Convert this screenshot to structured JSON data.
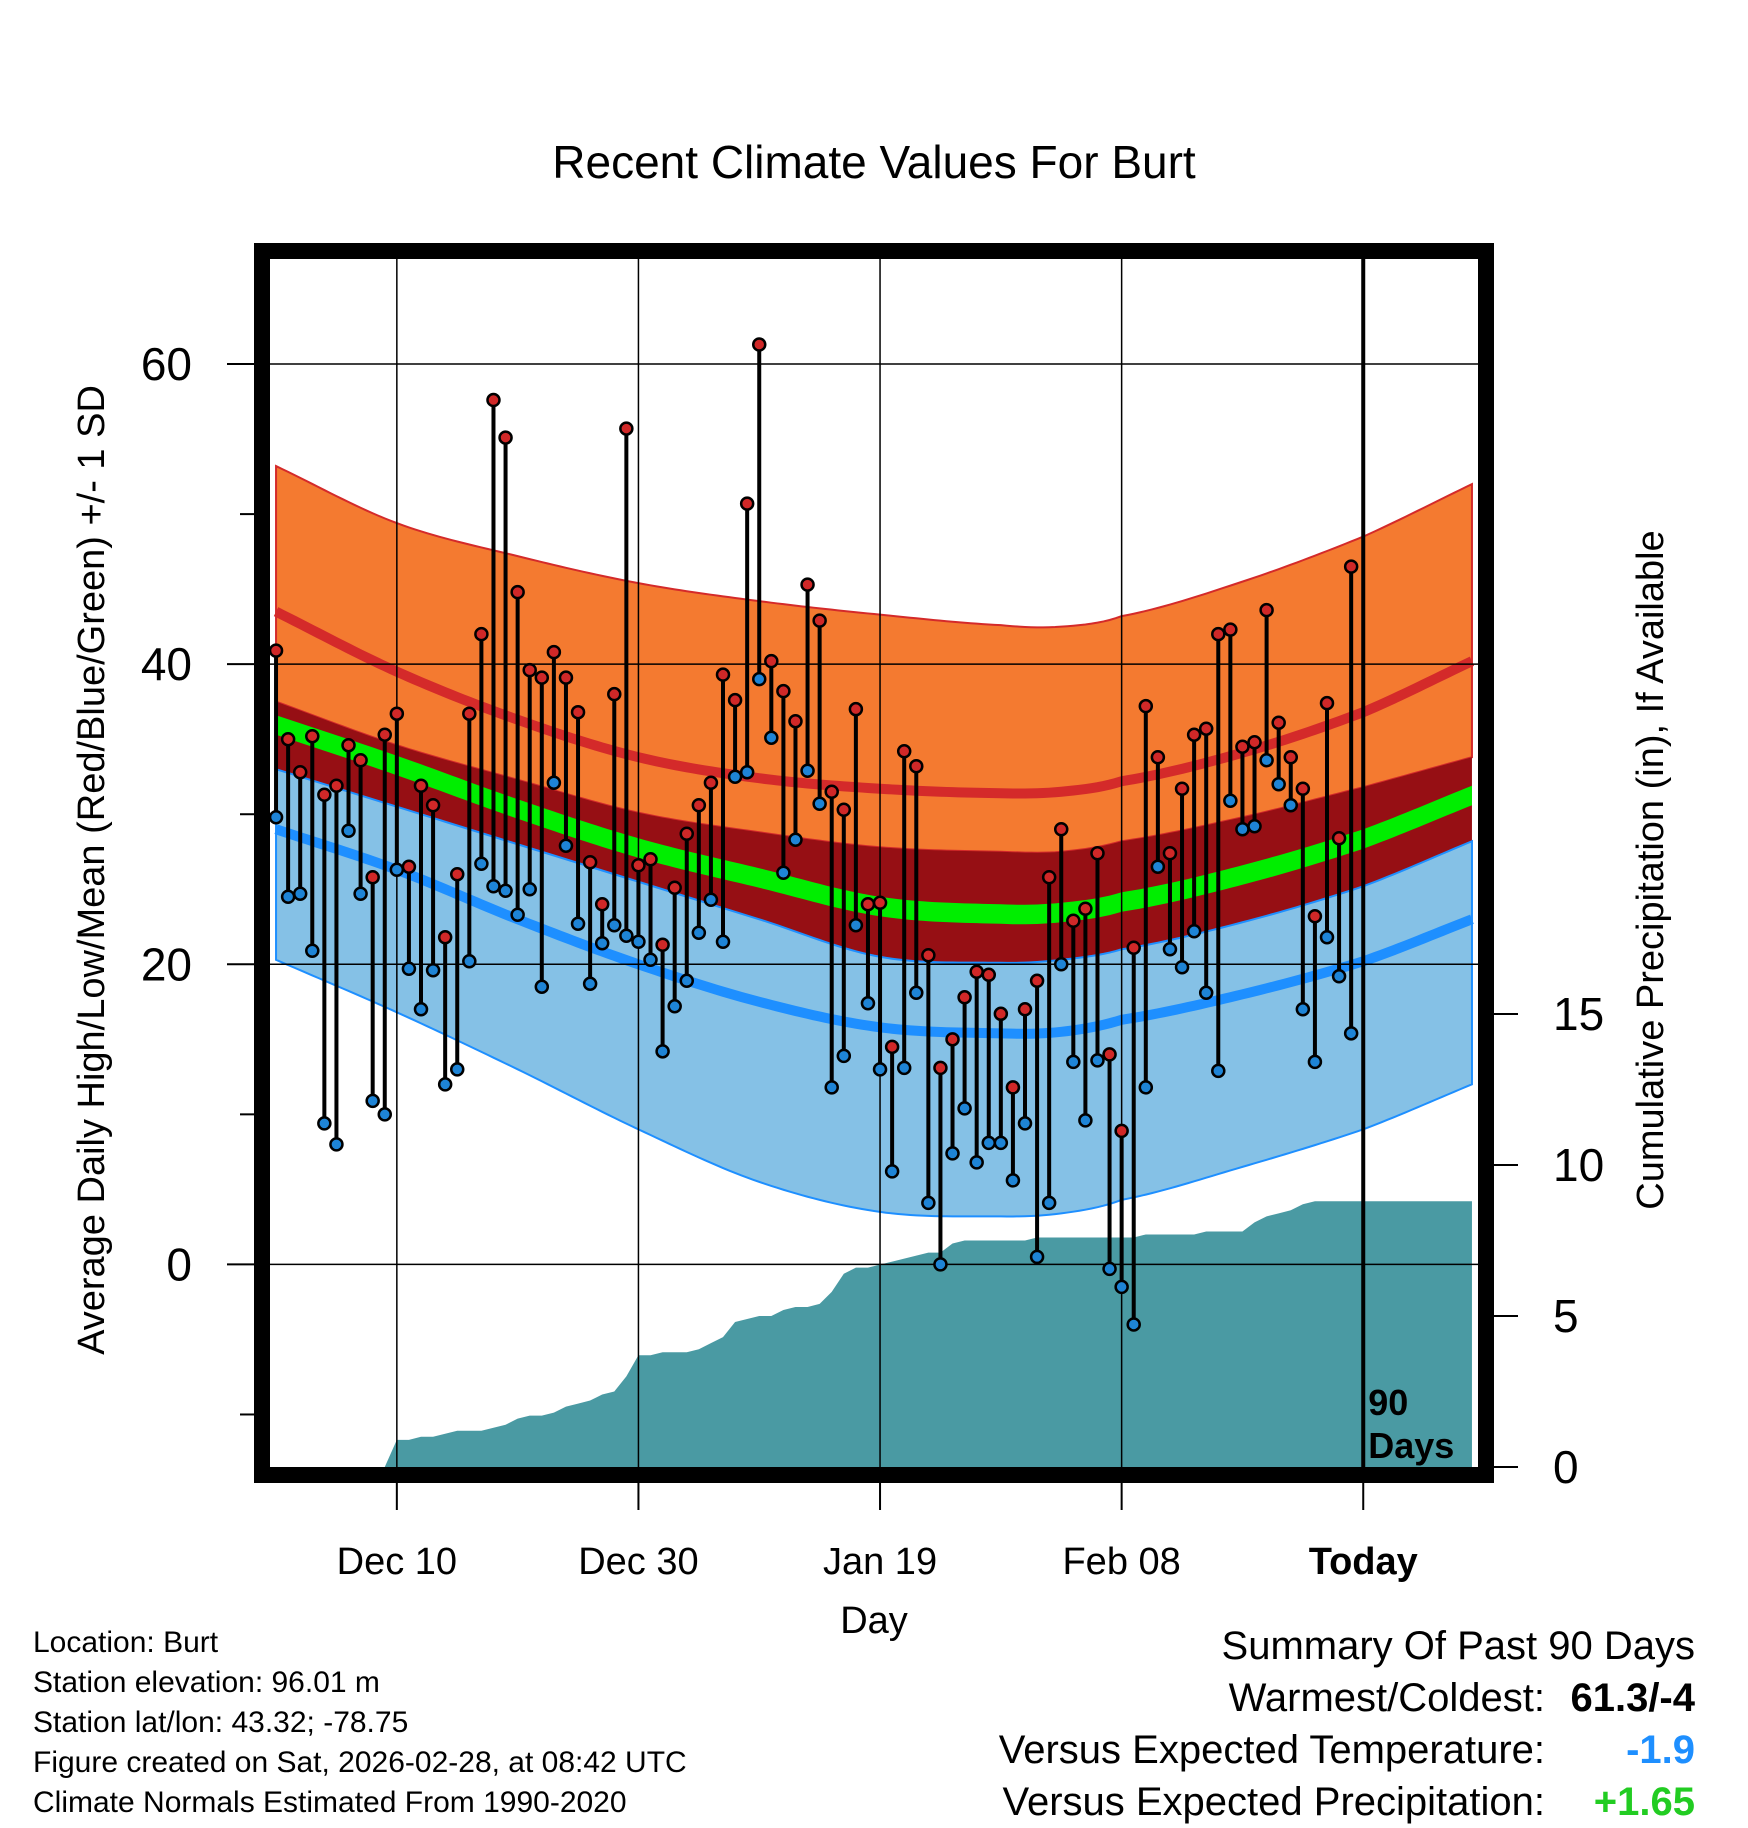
{
  "chart_data": {
    "type": "line",
    "title": "Recent Climate Values For Burt",
    "xlabel": "Day",
    "ylabel": "Average Daily High/Low/Mean (Red/Blue/Green) +/- 1 SD",
    "y2label": "Cumulative Precipitation (in), If Available",
    "x_ticks": [
      {
        "day": 10,
        "label": "Dec 10"
      },
      {
        "day": 30,
        "label": "Dec 30"
      },
      {
        "day": 50,
        "label": "Jan 19"
      },
      {
        "day": 70,
        "label": "Feb 08"
      },
      {
        "day": 90,
        "label": "Today"
      }
    ],
    "xlim": [
      -0.5,
      99.5
    ],
    "ylim": [
      -13.5,
      67
    ],
    "y_ticks": [
      0,
      20,
      40,
      60
    ],
    "y2_ticks": [
      0,
      5,
      10,
      15
    ],
    "y2lim": [
      0,
      40
    ],
    "today_day": 90,
    "today_label_line1": "90",
    "today_label_line2": "Days",
    "normals_days": [
      0,
      10,
      20,
      30,
      40,
      50,
      60,
      65,
      70,
      80,
      90,
      99
    ],
    "normals": {
      "high_upper": [
        53.2,
        49.4,
        47.2,
        45.4,
        44.2,
        43.3,
        42.6,
        42.5,
        43.2,
        45.5,
        48.5,
        52.0
      ],
      "high_mean": [
        43.5,
        39.5,
        36.3,
        33.8,
        32.4,
        31.7,
        31.4,
        31.5,
        32.2,
        34.1,
        36.8,
        40.2
      ],
      "high_lower": [
        37.5,
        34.6,
        32.3,
        30.1,
        28.8,
        27.8,
        27.5,
        27.5,
        28.2,
        29.8,
        31.8,
        33.8
      ],
      "mean_upper": [
        36.6,
        33.9,
        31.0,
        28.4,
        26.4,
        24.5,
        24.0,
        24.1,
        24.8,
        26.6,
        29.0,
        31.9
      ],
      "mean_lower": [
        35.3,
        32.6,
        29.7,
        27.1,
        25.1,
        23.2,
        22.7,
        22.8,
        23.5,
        25.3,
        27.7,
        30.6
      ],
      "low_upper": [
        33.0,
        30.5,
        28.0,
        25.5,
        23.0,
        20.5,
        20.1,
        20.3,
        21.0,
        22.8,
        25.2,
        28.2
      ],
      "low_mean": [
        29.0,
        26.3,
        23.0,
        20.0,
        17.5,
        15.8,
        15.4,
        15.5,
        16.3,
        18.0,
        20.2,
        23.0
      ],
      "low_lower": [
        20.3,
        16.8,
        13.0,
        9.0,
        5.5,
        3.5,
        3.2,
        3.4,
        4.3,
        6.5,
        9.0,
        12.0
      ]
    },
    "daily_high": [
      40.9,
      35.0,
      32.8,
      35.2,
      31.3,
      31.9,
      34.6,
      33.6,
      25.8,
      35.3,
      36.7,
      26.5,
      31.9,
      30.6,
      21.8,
      26.0,
      36.7,
      42.0,
      57.6,
      55.1,
      44.8,
      39.6,
      39.1,
      40.8,
      39.1,
      36.8,
      26.8,
      24.0,
      38.0,
      55.7,
      26.6,
      27.0,
      21.3,
      25.1,
      28.7,
      30.6,
      32.1,
      39.3,
      37.6,
      50.7,
      61.3,
      40.2,
      38.2,
      36.2,
      45.3,
      42.9,
      31.5,
      30.3,
      37.0,
      24.0,
      24.1,
      14.5,
      34.2,
      33.2,
      20.6,
      13.1,
      15.0,
      17.8,
      19.5,
      19.3,
      16.7,
      11.8,
      17.0,
      18.9,
      25.8,
      29.0,
      22.9,
      23.7,
      27.4,
      14.0,
      8.9,
      21.1,
      37.2,
      33.8,
      27.4,
      31.7,
      35.3,
      35.7,
      42.0,
      42.3,
      34.5,
      34.8,
      43.6,
      36.1,
      33.8,
      31.7,
      23.2,
      37.4,
      28.4,
      46.5
    ],
    "daily_low": [
      29.8,
      24.5,
      24.7,
      20.9,
      9.4,
      8.0,
      28.9,
      24.7,
      10.9,
      10.0,
      26.3,
      19.7,
      17.0,
      19.6,
      12.0,
      13.0,
      20.2,
      26.7,
      25.2,
      24.9,
      23.3,
      25.0,
      18.5,
      32.1,
      27.9,
      22.7,
      18.7,
      21.4,
      22.6,
      21.9,
      21.5,
      20.3,
      14.2,
      17.2,
      18.9,
      22.1,
      24.3,
      21.5,
      32.5,
      32.8,
      39.0,
      35.1,
      26.1,
      28.3,
      32.9,
      30.7,
      11.8,
      13.9,
      22.6,
      17.4,
      13.0,
      6.2,
      13.1,
      18.1,
      4.1,
      0.0,
      7.4,
      10.4,
      6.8,
      8.1,
      8.1,
      5.6,
      9.4,
      0.5,
      4.1,
      20.0,
      13.5,
      9.6,
      13.6,
      -0.3,
      -1.5,
      -4.0,
      11.8,
      26.5,
      21.0,
      19.8,
      22.2,
      18.1,
      12.9,
      30.9,
      29.0,
      29.2,
      33.6,
      32.0,
      30.6,
      17.0,
      13.5,
      21.8,
      19.2,
      15.4
    ],
    "cumulative_precip": [
      0,
      0,
      0,
      0,
      0,
      0,
      0,
      0,
      0,
      0,
      0.9,
      0.9,
      1.0,
      1.0,
      1.1,
      1.2,
      1.2,
      1.2,
      1.3,
      1.4,
      1.6,
      1.7,
      1.7,
      1.8,
      2.0,
      2.1,
      2.2,
      2.4,
      2.5,
      3.0,
      3.7,
      3.7,
      3.8,
      3.8,
      3.8,
      3.9,
      4.1,
      4.3,
      4.8,
      4.9,
      5.0,
      5.0,
      5.2,
      5.3,
      5.3,
      5.4,
      5.8,
      6.4,
      6.6,
      6.6,
      6.7,
      6.8,
      6.9,
      7.0,
      7.1,
      7.1,
      7.4,
      7.5,
      7.5,
      7.5,
      7.5,
      7.5,
      7.5,
      7.6,
      7.6,
      7.6,
      7.6,
      7.6,
      7.6,
      7.6,
      7.6,
      7.6,
      7.7,
      7.7,
      7.7,
      7.7,
      7.7,
      7.8,
      7.8,
      7.8,
      7.8,
      8.1,
      8.3,
      8.4,
      8.5,
      8.7,
      8.8,
      8.8,
      8.8,
      8.8,
      8.8,
      8.8,
      8.8,
      8.8,
      8.8,
      8.8,
      8.8,
      8.8,
      8.8,
      8.8
    ],
    "colors": {
      "high_band": "#F47A30",
      "high_mean": "#D42A2A",
      "mean_band": "#960F14",
      "normal_mean": "#00EE00",
      "low_band": "#85C1E6",
      "low_mean": "#1E8FFF",
      "precip": "#4A9AA3",
      "high_marker": "#D02828",
      "low_marker": "#1E84D6"
    }
  },
  "location": {
    "name_line": "Location: Burt",
    "elevation_line": "Station elevation: 96.01 m",
    "latlon_line": "Station lat/lon: 43.32; -78.75",
    "created_line": "Figure created on Sat, 2026-02-28, at 08:42 UTC",
    "normals_line": "Climate Normals Estimated From 1990-2020"
  },
  "summary": {
    "title": "Summary Of Past 90 Days",
    "warmest_coldest_label": "Warmest/Coldest:",
    "warmest_coldest_value": "61.3/-4",
    "temp_label": "Versus Expected Temperature:",
    "temp_value": "-1.9",
    "temp_color": "#1E8FFF",
    "precip_label": "Versus Expected Precipitation:",
    "precip_value": "+1.65",
    "precip_color": "#22CC22"
  }
}
